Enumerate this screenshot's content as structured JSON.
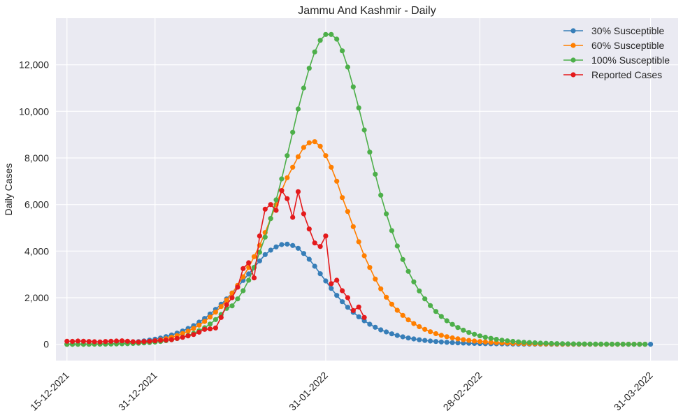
{
  "chart_data": {
    "type": "line",
    "title": "Jammu And Kashmir - Daily",
    "xlabel": "",
    "ylabel": "Daily Cases",
    "x_start": "15-12-2021",
    "x_end": "31-03-2022",
    "xlim": [
      "13-12-2021",
      "05-04-2022"
    ],
    "ylim": [
      -700,
      14000
    ],
    "x_ticks": [
      "15-12-2021",
      "31-12-2021",
      "31-01-2022",
      "28-02-2022",
      "31-03-2022"
    ],
    "y_ticks": [
      0,
      2000,
      4000,
      6000,
      8000,
      10000,
      12000
    ],
    "y_tick_labels": [
      "0",
      "2,000",
      "4,000",
      "6,000",
      "8,000",
      "10,000",
      "12,000"
    ],
    "grid": true,
    "legend_position": "top-right",
    "background": "#EAEAF2",
    "series": [
      {
        "name": "30% Susceptible",
        "color": "#377EB8",
        "values": [
          0,
          2,
          4,
          6,
          9,
          13,
          18,
          24,
          32,
          42,
          55,
          70,
          90,
          115,
          145,
          180,
          220,
          270,
          330,
          400,
          480,
          570,
          680,
          800,
          950,
          1110,
          1300,
          1500,
          1720,
          1950,
          2200,
          2460,
          2740,
          3020,
          3300,
          3580,
          3850,
          4040,
          4180,
          4280,
          4300,
          4240,
          4120,
          3900,
          3650,
          3350,
          3030,
          2720,
          2400,
          2100,
          1830,
          1590,
          1370,
          1180,
          1010,
          860,
          730,
          620,
          530,
          450,
          380,
          320,
          270,
          230,
          195,
          165,
          140,
          118,
          100,
          85,
          72,
          61,
          52,
          44,
          37,
          31,
          26,
          22,
          19,
          16,
          13,
          11,
          9,
          8,
          7,
          6,
          5,
          4,
          3,
          3,
          2,
          2,
          2,
          1,
          1,
          1,
          1,
          1,
          1,
          1,
          1,
          1,
          1,
          1,
          1,
          1,
          1
        ]
      },
      {
        "name": "60% Susceptible",
        "color": "#FF7F00",
        "values": [
          0,
          1,
          2,
          3,
          5,
          7,
          10,
          14,
          19,
          25,
          33,
          44,
          57,
          74,
          95,
          120,
          150,
          190,
          240,
          300,
          370,
          460,
          560,
          680,
          820,
          980,
          1170,
          1380,
          1620,
          1900,
          2200,
          2530,
          2900,
          3300,
          3760,
          4250,
          4800,
          5400,
          6000,
          6600,
          7150,
          7600,
          8050,
          8450,
          8650,
          8700,
          8500,
          8100,
          7600,
          7000,
          6300,
          5700,
          5050,
          4400,
          3800,
          3300,
          2800,
          2380,
          2020,
          1720,
          1460,
          1240,
          1050,
          890,
          755,
          640,
          540,
          455,
          385,
          325,
          275,
          232,
          196,
          166,
          140,
          118,
          100,
          84,
          71,
          60,
          50,
          42,
          36,
          30,
          25,
          21,
          18,
          15,
          13,
          11,
          9,
          8,
          6,
          5,
          4,
          4,
          3,
          3,
          2,
          2,
          2,
          1,
          1,
          1,
          1,
          1
        ]
      },
      {
        "name": "100% Susceptible",
        "color": "#4DAF4A",
        "values": [
          0,
          1,
          1,
          2,
          3,
          4,
          6,
          8,
          11,
          15,
          20,
          26,
          34,
          45,
          58,
          75,
          96,
          122,
          155,
          195,
          245,
          305,
          380,
          470,
          580,
          710,
          870,
          1060,
          1280,
          1540,
          1650,
          1950,
          2300,
          2750,
          3300,
          3950,
          4600,
          5400,
          6200,
          7100,
          8100,
          9100,
          10100,
          11000,
          11850,
          12550,
          13050,
          13300,
          13300,
          13100,
          12600,
          11900,
          11050,
          10150,
          9200,
          8250,
          7300,
          6400,
          5600,
          4880,
          4220,
          3640,
          3130,
          2680,
          2290,
          1950,
          1660,
          1410,
          1195,
          1010,
          855,
          720,
          605,
          510,
          430,
          360,
          302,
          253,
          212,
          177,
          148,
          124,
          104,
          87,
          73,
          61,
          51,
          43,
          36,
          30,
          25,
          21,
          18,
          15,
          13,
          11,
          9,
          8,
          7,
          6,
          5,
          4,
          3,
          3,
          2,
          2
        ]
      },
      {
        "name": "Reported Cases",
        "color": "#E41A1C",
        "values": [
          130,
          125,
          140,
          130,
          120,
          110,
          100,
          120,
          130,
          140,
          150,
          130,
          110,
          100,
          120,
          130,
          150,
          170,
          180,
          200,
          250,
          300,
          360,
          420,
          520,
          640,
          660,
          700,
          1150,
          1700,
          2000,
          2450,
          3250,
          3500,
          2850,
          4650,
          5800,
          6000,
          5750,
          6600,
          6250,
          5450,
          6550,
          5600,
          4950,
          4350,
          4200,
          4650,
          2600,
          2750,
          2300,
          2000,
          1450,
          1600,
          1150
        ]
      }
    ]
  }
}
